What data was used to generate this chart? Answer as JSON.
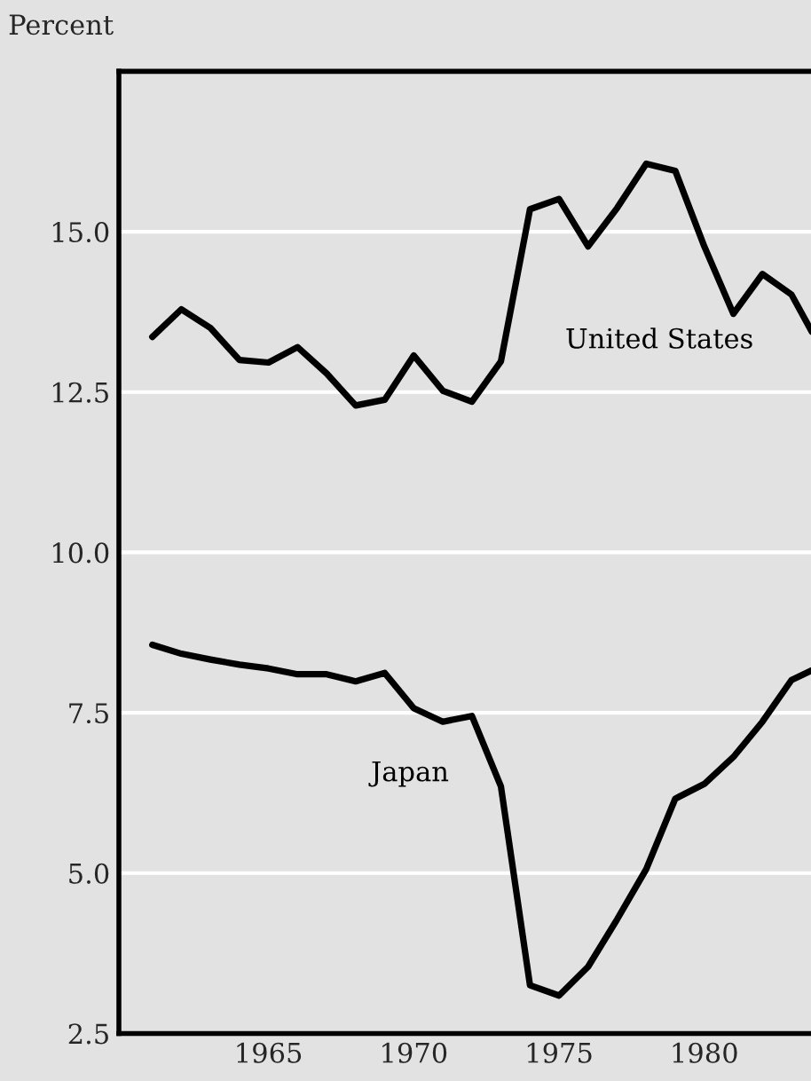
{
  "chart_data": {
    "type": "line",
    "ylabel": "Percent",
    "x": [
      1961,
      1962,
      1963,
      1964,
      1965,
      1966,
      1967,
      1968,
      1969,
      1970,
      1971,
      1972,
      1973,
      1974,
      1975,
      1976,
      1977,
      1978,
      1979,
      1980,
      1981,
      1982,
      1983,
      1983.7
    ],
    "series": [
      {
        "name": "United States",
        "color": "#000000",
        "values": [
          13.36,
          13.79,
          13.5,
          13.0,
          12.96,
          13.2,
          12.79,
          12.29,
          12.38,
          13.07,
          12.52,
          12.35,
          12.98,
          15.35,
          15.51,
          14.77,
          15.37,
          16.06,
          15.95,
          14.77,
          13.72,
          14.34,
          14.02,
          13.44
        ]
      },
      {
        "name": "Japan",
        "color": "#000000",
        "values": [
          8.56,
          8.42,
          8.33,
          8.25,
          8.19,
          8.1,
          8.1,
          7.99,
          8.12,
          7.57,
          7.36,
          7.45,
          6.35,
          3.25,
          3.09,
          3.54,
          4.28,
          5.06,
          6.16,
          6.39,
          6.81,
          7.36,
          8.01,
          8.16
        ]
      }
    ],
    "xlim": [
      1959.85,
      1983.7
    ],
    "xticks": [
      1965,
      1970,
      1975,
      1980
    ],
    "ylim": [
      2.5,
      17.5
    ],
    "yticks": [
      {
        "value": 2.5,
        "label": "2.5"
      },
      {
        "value": 5.0,
        "label": "5.0"
      },
      {
        "value": 7.5,
        "label": "7.5"
      },
      {
        "value": 10.0,
        "label": "10.0"
      },
      {
        "value": 12.5,
        "label": "12.5"
      },
      {
        "value": 15.0,
        "label": "15.0"
      }
    ],
    "grid": "y",
    "legend": false,
    "marker": "none",
    "line_style": "solid"
  }
}
